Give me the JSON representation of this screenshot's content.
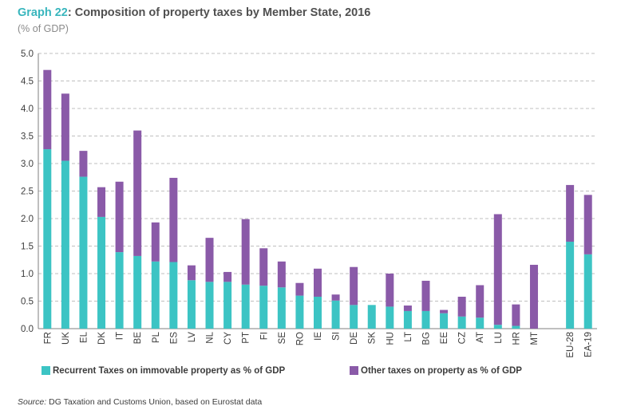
{
  "header": {
    "title_number": "Graph 22",
    "title_text": ": Composition of property taxes by Member State, 2016",
    "subtitle": "(% of GDP)"
  },
  "source": {
    "label": "Source:",
    "text": " DG Taxation and Customs Union, based on Eurostat data"
  },
  "colors": {
    "recurrent": "#3cc4c4",
    "other": "#8a5aa8",
    "grid": "#bfbfbf",
    "axis": "#7f7f7f",
    "title_accent": "#39b6bd"
  },
  "chart_data": {
    "type": "bar",
    "stacked": true,
    "title": "Composition of property taxes by Member State, 2016",
    "ylabel": "(% of GDP)",
    "ylim": [
      0,
      5.0
    ],
    "yticks": [
      "0.0",
      "0.5",
      "1.0",
      "1.5",
      "2.0",
      "2.5",
      "3.0",
      "3.5",
      "4.0",
      "4.5",
      "5.0"
    ],
    "grid": true,
    "legend_position": "bottom",
    "categories": [
      "FR",
      "UK",
      "EL",
      "DK",
      "IT",
      "BE",
      "PL",
      "ES",
      "LV",
      "NL",
      "CY",
      "PT",
      "FI",
      "SE",
      "RO",
      "IE",
      "SI",
      "DE",
      "SK",
      "HU",
      "LT",
      "BG",
      "EE",
      "CZ",
      "AT",
      "LU",
      "HR",
      "MT",
      "",
      "EU-28",
      "EA-19"
    ],
    "series": [
      {
        "name": "Recurrent Taxes on immovable property as % of GDP",
        "values": [
          3.26,
          3.05,
          2.76,
          2.03,
          1.39,
          1.32,
          1.22,
          1.21,
          0.88,
          0.85,
          0.85,
          0.8,
          0.78,
          0.75,
          0.6,
          0.58,
          0.51,
          0.43,
          0.43,
          0.4,
          0.32,
          0.32,
          0.28,
          0.22,
          0.2,
          0.07,
          0.05,
          0.0,
          null,
          1.58,
          1.35
        ]
      },
      {
        "name": "Other taxes on property as % of GDP",
        "values": [
          1.44,
          1.22,
          0.47,
          0.54,
          1.28,
          2.28,
          0.71,
          1.53,
          0.27,
          0.8,
          0.18,
          1.19,
          0.68,
          0.47,
          0.23,
          0.51,
          0.11,
          0.69,
          0.0,
          0.6,
          0.1,
          0.55,
          0.06,
          0.36,
          0.59,
          2.01,
          0.39,
          1.16,
          null,
          1.03,
          1.08
        ]
      }
    ]
  }
}
